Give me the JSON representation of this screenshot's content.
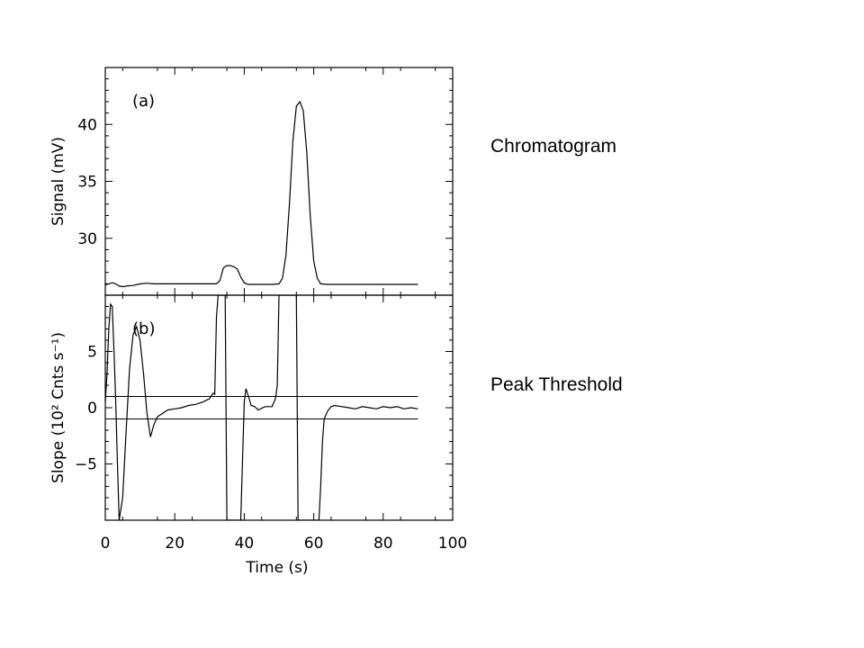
{
  "labels": {
    "top": "Chromatogram",
    "bottom": "Peak Threshold"
  },
  "chart_data": [
    {
      "type": "line",
      "panel_label": "(a)",
      "ylabel": "Signal (mV)",
      "xlim": [
        0,
        100
      ],
      "ylim": [
        25,
        45
      ],
      "yticks": [
        30,
        35,
        40
      ],
      "xticks": [
        0,
        20,
        40,
        60,
        80,
        100
      ],
      "series": [
        {
          "x": [
            0,
            1,
            2,
            3,
            4,
            5,
            6,
            8,
            10,
            12,
            14,
            16,
            18,
            20,
            22,
            24,
            26,
            28,
            30,
            32,
            33,
            34,
            35,
            36,
            37,
            38,
            39,
            40,
            41,
            42,
            44,
            46,
            48,
            50,
            51,
            52,
            53,
            54,
            55,
            56,
            57,
            58,
            59,
            60,
            61,
            62,
            64,
            66,
            70,
            75,
            80,
            85,
            90
          ],
          "y": [
            25.9,
            26.0,
            26.1,
            26.0,
            25.8,
            25.75,
            25.8,
            25.85,
            26.0,
            26.05,
            26.0,
            26.0,
            26.0,
            26.0,
            26.0,
            26.0,
            26.0,
            26.0,
            26.0,
            26.0,
            26.3,
            27.4,
            27.6,
            27.6,
            27.5,
            27.3,
            26.6,
            26.1,
            25.95,
            25.95,
            25.95,
            25.95,
            25.95,
            26.0,
            26.5,
            28.5,
            33.0,
            38.5,
            41.6,
            42.0,
            41.2,
            37.5,
            32.0,
            28.0,
            26.5,
            26.0,
            25.95,
            25.95,
            25.95,
            25.95,
            25.95,
            25.95,
            25.95
          ]
        }
      ]
    },
    {
      "type": "line",
      "panel_label": "(b)",
      "ylabel": "Slope (10² Cnts s⁻¹)",
      "xlabel": "Time (s)",
      "xlim": [
        0,
        100
      ],
      "ylim": [
        -10,
        10
      ],
      "yticks": [
        -5,
        0,
        5
      ],
      "xticks": [
        0,
        20,
        40,
        60,
        80,
        100
      ],
      "thresholds": [
        1,
        -1
      ],
      "series": [
        {
          "x": [
            0,
            0.5,
            1,
            1.5,
            2,
            2.5,
            3,
            3.5,
            4,
            5,
            6,
            7,
            8,
            9,
            10,
            11,
            12,
            13,
            14,
            15,
            16,
            18,
            20,
            22,
            24,
            26,
            28,
            30,
            31,
            31.5,
            32,
            32.5,
            33,
            34,
            34.5,
            35,
            35.5,
            36,
            37,
            38,
            39,
            40,
            40.5,
            41,
            42,
            43,
            44,
            46,
            48,
            49,
            49.5,
            50,
            51,
            52,
            53,
            54,
            55,
            55.5,
            56,
            57,
            58,
            59,
            60,
            61,
            61.5,
            62,
            62.5,
            63,
            64,
            65,
            66,
            68,
            70,
            72,
            74,
            76,
            78,
            80,
            82,
            84,
            86,
            88,
            90
          ],
          "y": [
            0.5,
            3.0,
            7.0,
            9.2,
            9.0,
            5.0,
            0.5,
            -5.0,
            -10.0,
            -8.0,
            -2.0,
            3.5,
            6.5,
            7.2,
            6.0,
            3.0,
            -0.5,
            -2.6,
            -1.5,
            -0.8,
            -0.6,
            -0.2,
            -0.1,
            0.0,
            0.2,
            0.3,
            0.5,
            0.8,
            1.3,
            1.2,
            8.0,
            10.0,
            10.0,
            10.0,
            10.0,
            -10.0,
            -10.0,
            -10.0,
            -10.0,
            -10.0,
            -10.0,
            0.5,
            1.7,
            1.2,
            0.2,
            0.1,
            -0.2,
            0.1,
            0.1,
            0.8,
            2.0,
            10.0,
            10.0,
            10.0,
            10.0,
            10.0,
            10.0,
            -10.0,
            -10.0,
            -10.0,
            -10.0,
            -10.0,
            -10.0,
            -10.0,
            -10.0,
            -7.0,
            -3.0,
            -1.0,
            -0.3,
            0.1,
            0.2,
            0.1,
            0.0,
            -0.1,
            0.1,
            0.0,
            -0.1,
            0.1,
            0.0,
            0.1,
            -0.1,
            0.0,
            -0.1
          ]
        }
      ]
    }
  ]
}
